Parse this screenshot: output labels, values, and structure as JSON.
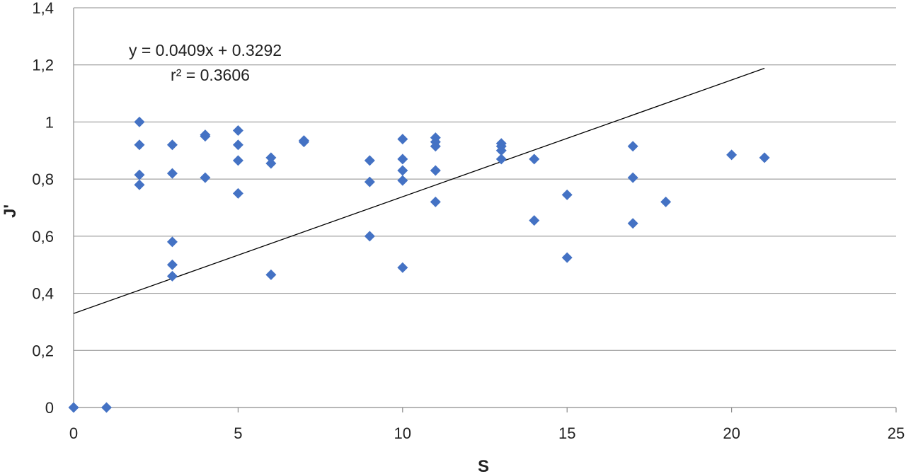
{
  "chart_data": {
    "type": "scatter",
    "xlabel": "S",
    "ylabel": "J'",
    "xlim": [
      0,
      25
    ],
    "ylim": [
      0,
      1.4
    ],
    "x_ticks": [
      0,
      5,
      10,
      15,
      20,
      25
    ],
    "y_ticks": [
      0,
      0.2,
      0.4,
      0.6,
      0.8,
      1,
      1.2,
      1.4
    ],
    "x_tick_labels": [
      "0",
      "5",
      "10",
      "15",
      "20",
      "25"
    ],
    "y_tick_labels": [
      "0",
      "0,2",
      "0,4",
      "0,6",
      "0,8",
      "1",
      "1,2",
      "1,4"
    ],
    "grid": "horizontal",
    "marker": "diamond",
    "marker_color": "#4472C4",
    "points": [
      {
        "x": 0,
        "y": 0
      },
      {
        "x": 1,
        "y": 0
      },
      {
        "x": 2,
        "y": 1.0
      },
      {
        "x": 2,
        "y": 0.92
      },
      {
        "x": 2,
        "y": 0.815
      },
      {
        "x": 2,
        "y": 0.78
      },
      {
        "x": 3,
        "y": 0.92
      },
      {
        "x": 3,
        "y": 0.82
      },
      {
        "x": 3,
        "y": 0.58
      },
      {
        "x": 3,
        "y": 0.5
      },
      {
        "x": 3,
        "y": 0.46
      },
      {
        "x": 4,
        "y": 0.955
      },
      {
        "x": 4,
        "y": 0.95
      },
      {
        "x": 4,
        "y": 0.805
      },
      {
        "x": 5,
        "y": 0.97
      },
      {
        "x": 5,
        "y": 0.92
      },
      {
        "x": 5,
        "y": 0.865
      },
      {
        "x": 5,
        "y": 0.75
      },
      {
        "x": 6,
        "y": 0.875
      },
      {
        "x": 6,
        "y": 0.855
      },
      {
        "x": 6,
        "y": 0.465
      },
      {
        "x": 7,
        "y": 0.935
      },
      {
        "x": 7,
        "y": 0.93
      },
      {
        "x": 9,
        "y": 0.865
      },
      {
        "x": 9,
        "y": 0.79
      },
      {
        "x": 9,
        "y": 0.6
      },
      {
        "x": 10,
        "y": 0.94
      },
      {
        "x": 10,
        "y": 0.87
      },
      {
        "x": 10,
        "y": 0.83
      },
      {
        "x": 10,
        "y": 0.795
      },
      {
        "x": 10,
        "y": 0.49
      },
      {
        "x": 11,
        "y": 0.945
      },
      {
        "x": 11,
        "y": 0.93
      },
      {
        "x": 11,
        "y": 0.915
      },
      {
        "x": 11,
        "y": 0.83
      },
      {
        "x": 11,
        "y": 0.72
      },
      {
        "x": 13,
        "y": 0.925
      },
      {
        "x": 13,
        "y": 0.915
      },
      {
        "x": 13,
        "y": 0.9
      },
      {
        "x": 13,
        "y": 0.87
      },
      {
        "x": 14,
        "y": 0.87
      },
      {
        "x": 14,
        "y": 0.655
      },
      {
        "x": 15,
        "y": 0.745
      },
      {
        "x": 15,
        "y": 0.525
      },
      {
        "x": 17,
        "y": 0.915
      },
      {
        "x": 17,
        "y": 0.805
      },
      {
        "x": 17,
        "y": 0.645
      },
      {
        "x": 18,
        "y": 0.72
      },
      {
        "x": 20,
        "y": 0.885
      },
      {
        "x": 21,
        "y": 0.875
      }
    ],
    "trendline": {
      "slope": 0.0409,
      "intercept": 0.3292,
      "x_range": [
        0,
        21
      ],
      "color": "#000000",
      "equation_label": "y = 0.0409x + 0.3292",
      "r2_label": "r² = 0.3606"
    }
  }
}
